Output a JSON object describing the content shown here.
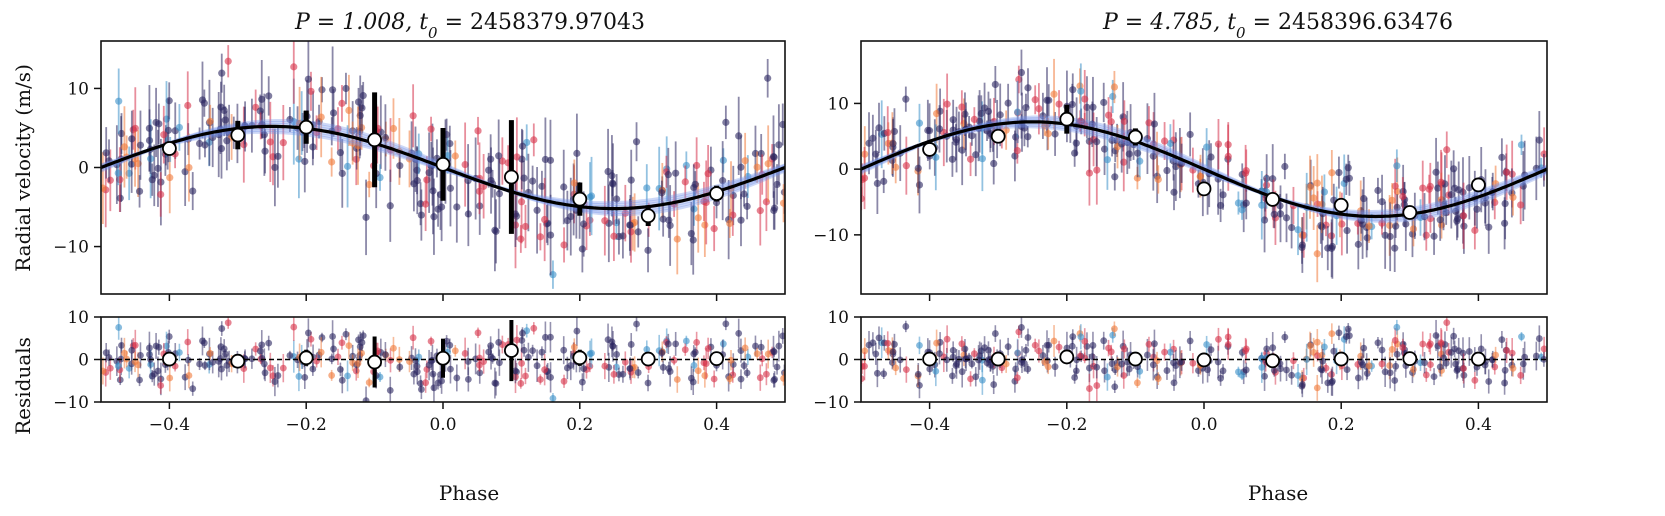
{
  "figure": {
    "xlabel": "Phase",
    "ylabel_top": "Radial velocity (m/s)",
    "ylabel_bottom": "Residuals"
  },
  "colors": {
    "point_dark": "#2b2660",
    "point_red": "#d6324a",
    "point_orange": "#f07a3a",
    "point_blue": "#3a8fc8",
    "model_band": "#6f8fe8",
    "model_line": "#000000",
    "binned": "#ffffff"
  },
  "chart_data": [
    {
      "type": "scatter",
      "title_prefix": "P = 1.008, t",
      "title_sub": "0",
      "title_suffix": " = 2458379.97043",
      "xlim": [
        -0.5,
        0.5
      ],
      "ylim": [
        -16,
        16
      ],
      "resid_ylim": [
        -10,
        10
      ],
      "xticks": [
        -0.4,
        -0.2,
        0.0,
        0.2,
        0.4
      ],
      "xtick_labels": [
        "−0.4",
        "−0.2",
        "0.0",
        "0.2",
        "0.4"
      ],
      "yticks": [
        -10,
        0,
        10
      ],
      "ytick_labels": [
        "−10",
        "0",
        "10"
      ],
      "resid_yticks": [
        -10,
        0,
        10
      ],
      "resid_ytick_labels": [
        "−10",
        "0",
        "10"
      ],
      "model": {
        "amplitude": 5.2,
        "phase_offset": 0.0
      },
      "binned": {
        "phase": [
          -0.4,
          -0.3,
          -0.2,
          -0.1,
          0.0,
          0.1,
          0.2,
          0.3,
          0.4
        ],
        "rv": [
          2.4,
          4.1,
          5.1,
          3.5,
          0.4,
          -1.2,
          -4.0,
          -6.1,
          -3.3
        ],
        "rv_err": [
          0.9,
          1.8,
          2.1,
          6.0,
          4.6,
          7.2,
          2.1,
          1.3,
          1.0
        ],
        "resid": [
          0.1,
          -0.4,
          0.4,
          -0.6,
          0.3,
          2.1,
          0.4,
          0.1,
          0.2
        ],
        "resid_err": [
          1.0,
          1.6,
          1.9,
          6.0,
          4.6,
          7.2,
          1.9,
          1.3,
          1.0
        ]
      },
      "scatter_seed": 7,
      "scatter_count": 320,
      "scatter_sigma": 4.3
    },
    {
      "type": "scatter",
      "title_prefix": "P = 4.785, t",
      "title_sub": "0",
      "title_suffix": " = 2458396.63476",
      "xlim": [
        -0.5,
        0.5
      ],
      "ylim": [
        -19,
        19.5
      ],
      "resid_ylim": [
        -10,
        10
      ],
      "xticks": [
        -0.4,
        -0.2,
        0.0,
        0.2,
        0.4
      ],
      "xtick_labels": [
        "−0.4",
        "−0.2",
        "0.0",
        "0.2",
        "0.4"
      ],
      "yticks": [
        -10,
        0,
        10
      ],
      "ytick_labels": [
        "−10",
        "0",
        "10"
      ],
      "resid_yticks": [
        -10,
        0,
        10
      ],
      "resid_ytick_labels": [
        "−10",
        "0",
        "10"
      ],
      "model": {
        "amplitude": 7.2,
        "phase_offset": 0.0
      },
      "binned": {
        "phase": [
          -0.4,
          -0.3,
          -0.2,
          -0.1,
          0.0,
          0.1,
          0.2,
          0.3,
          0.4
        ],
        "rv": [
          3.0,
          5.0,
          7.6,
          4.9,
          -3.0,
          -4.6,
          -5.5,
          -6.6,
          -2.4
        ],
        "rv_err": [
          0.9,
          0.9,
          2.2,
          1.3,
          0.8,
          1.0,
          0.8,
          0.9,
          0.8
        ],
        "resid": [
          0.1,
          0.1,
          0.6,
          0.1,
          -0.1,
          -0.3,
          0.1,
          0.2,
          0.1
        ],
        "resid_err": [
          0.9,
          0.9,
          1.3,
          0.9,
          0.8,
          1.0,
          0.8,
          0.9,
          0.8
        ]
      },
      "scatter_seed": 19,
      "scatter_count": 330,
      "scatter_sigma": 4.1
    }
  ]
}
